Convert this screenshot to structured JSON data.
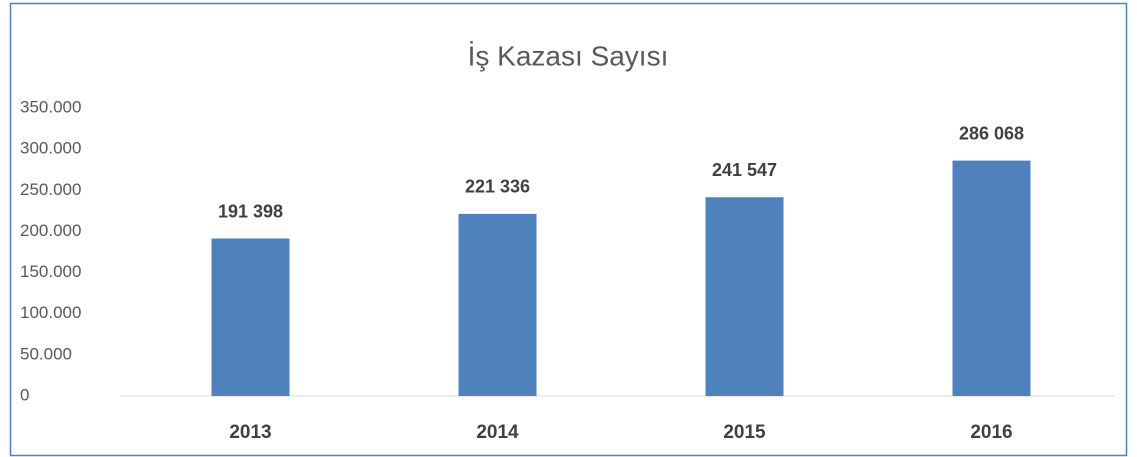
{
  "chart_data": {
    "type": "bar",
    "title": "İş Kazası Sayısı",
    "categories": [
      "2013",
      "2014",
      "2015",
      "2016"
    ],
    "values": [
      191398,
      221336,
      241547,
      286068
    ],
    "value_labels": [
      "191 398",
      "221 336",
      "241 547",
      "286 068"
    ],
    "color": "#4f81bd",
    "ylim": [
      0,
      350000
    ],
    "yticks": [
      0,
      {
        "value": 50000,
        "label": "50.000"
      },
      {
        "value": 100000,
        "label": "100.000"
      },
      {
        "value": 150000,
        "label": "150.000"
      },
      {
        "value": 200000,
        "label": "200.000"
      },
      {
        "value": 250000,
        "label": "250.000"
      },
      {
        "value": 300000,
        "label": "300.000"
      },
      {
        "value": 350000,
        "label": "350.000"
      }
    ],
    "grid": false
  }
}
